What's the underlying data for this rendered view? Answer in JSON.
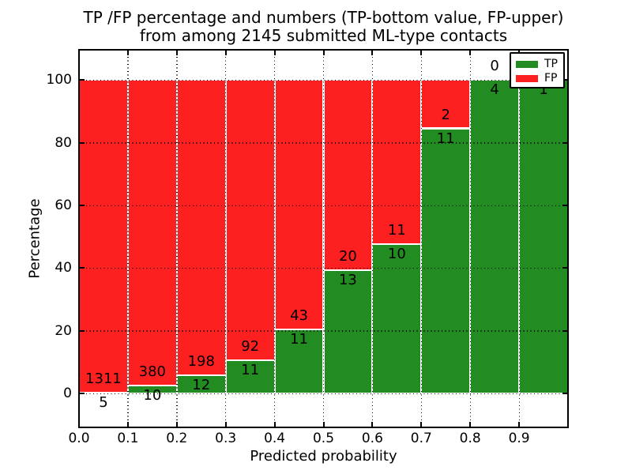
{
  "title": {
    "line1": "TP /FP percentage and numbers (TP-bottom value, FP-upper)",
    "line2": "from among 2145 submitted ML-type contacts"
  },
  "axes": {
    "xlabel": "Predicted probability",
    "ylabel": "Percentage",
    "x_tick_labels": [
      "0.0",
      "0.1",
      "0.2",
      "0.3",
      "0.4",
      "0.5",
      "0.6",
      "0.7",
      "0.8",
      "0.9"
    ],
    "x_tick_values": [
      0.0,
      0.1,
      0.2,
      0.3,
      0.4,
      0.5,
      0.6,
      0.7,
      0.8,
      0.9
    ],
    "y_tick_labels": [
      "0",
      "20",
      "40",
      "60",
      "80",
      "100"
    ],
    "y_tick_values": [
      0,
      20,
      40,
      60,
      80,
      100
    ]
  },
  "legend": {
    "position": "upper right",
    "items": [
      {
        "label": "TP",
        "color": "#228b22"
      },
      {
        "label": "FP",
        "color": "#fd2020"
      }
    ]
  },
  "colors": {
    "tp": "#228b22",
    "fp": "#fd2020",
    "bar_edge": "#ffffff",
    "grid": "#000000",
    "background": "#ffffff",
    "text": "#000000"
  },
  "chart_data": {
    "type": "bar",
    "variant": "stacked-100-percent",
    "title": "TP /FP percentage and numbers (TP-bottom value, FP-upper) from among 2145 submitted ML-type contacts",
    "xlabel": "Predicted probability",
    "ylabel": "Percentage",
    "total_contacts": 2145,
    "bin_width": 0.1,
    "bin_starts": [
      0.0,
      0.1,
      0.2,
      0.3,
      0.4,
      0.5,
      0.6,
      0.7,
      0.8,
      0.9
    ],
    "series": [
      {
        "name": "TP",
        "color": "#228b22",
        "counts": [
          5,
          10,
          12,
          11,
          11,
          13,
          10,
          11,
          4,
          1
        ]
      },
      {
        "name": "FP",
        "color": "#fd2020",
        "counts": [
          1311,
          380,
          198,
          92,
          43,
          20,
          11,
          2,
          0,
          0
        ]
      }
    ],
    "tp_percent": [
      0.38,
      2.56,
      5.71,
      10.68,
      20.37,
      39.39,
      47.62,
      84.62,
      100.0,
      100.0
    ],
    "xlim": [
      0.0,
      1.0
    ],
    "ylim": [
      -10.8,
      109.7
    ],
    "grid": "dotted",
    "grid_above_bars": true,
    "legend_position": "upper right"
  }
}
